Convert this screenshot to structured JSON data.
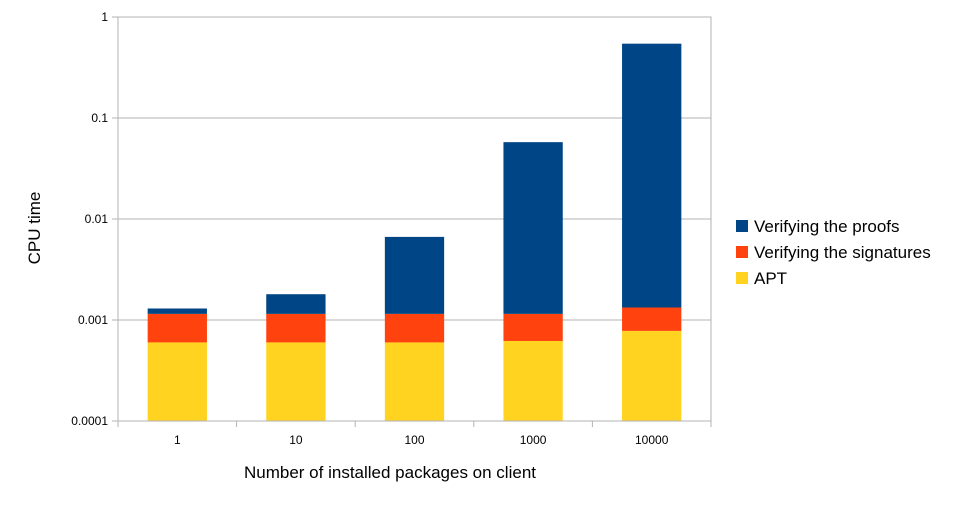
{
  "chart_data": {
    "type": "bar",
    "stacked": true,
    "y_scale": "log",
    "ylim": [
      0.0001,
      1
    ],
    "y_ticks": [
      "1",
      "0.1",
      "0.01",
      "0.001",
      "0.0001"
    ],
    "categories": [
      "1",
      "10",
      "100",
      "1000",
      "10000"
    ],
    "xlabel": "Number of installed packages on client",
    "ylabel": "CPU time",
    "legend_position": "right",
    "grid": true,
    "series": [
      {
        "name": "APT",
        "color": "#ffd320",
        "values": [
          0.0006,
          0.0006,
          0.0006,
          0.00062,
          0.00078
        ]
      },
      {
        "name": "Verifying the signatures",
        "color": "#ff420e",
        "values": [
          0.00055,
          0.00055,
          0.00055,
          0.00053,
          0.00055
        ]
      },
      {
        "name": "Verifying the proofs",
        "color": "#004586",
        "values": [
          0.00015,
          0.00065,
          0.0055,
          0.0565,
          0.543
        ]
      }
    ],
    "legend_order": [
      "Verifying the proofs",
      "Verifying the signatures",
      "APT"
    ]
  }
}
